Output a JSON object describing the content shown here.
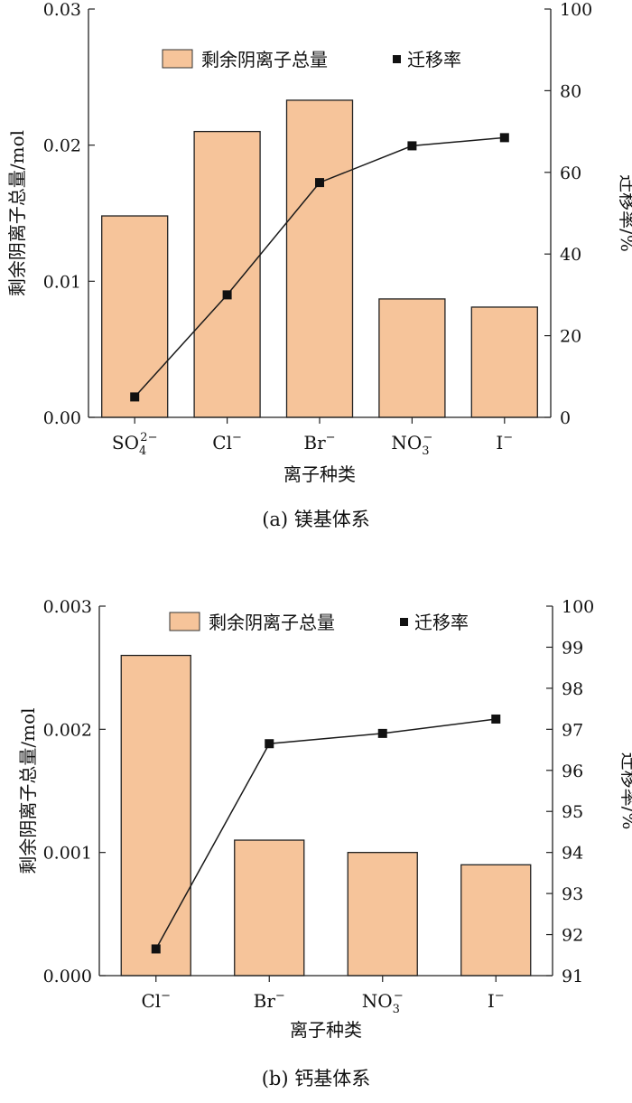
{
  "chart_data": [
    {
      "type": "bar+line",
      "caption": "(a) 镁基体系",
      "xlabel": "离子种类",
      "categories": [
        {
          "base": "SO",
          "sub": "4",
          "sup": "2−"
        },
        {
          "base": "Cl",
          "sub": "",
          "sup": "−"
        },
        {
          "base": "Br",
          "sub": "",
          "sup": "−"
        },
        {
          "base": "NO",
          "sub": "3",
          "sup": "−"
        },
        {
          "base": "I",
          "sub": "",
          "sup": "−"
        }
      ],
      "y_left": {
        "label": "剩余阴离子总量/mol",
        "lim": [
          0,
          0.03
        ],
        "ticks": [
          0,
          0.01,
          0.02,
          0.03
        ],
        "tick_labels": [
          "0.00",
          "0.01",
          "0.02",
          "0.03"
        ]
      },
      "y_right": {
        "label": "迁移率/%",
        "lim": [
          0,
          100
        ],
        "ticks": [
          0,
          20,
          40,
          60,
          80,
          100
        ],
        "tick_labels": [
          "0",
          "20",
          "40",
          "60",
          "80",
          "100"
        ]
      },
      "series": [
        {
          "name": "剩余阴离子总量",
          "kind": "bar",
          "axis": "left",
          "color": "#F6C49A",
          "values": [
            0.0148,
            0.021,
            0.0233,
            0.0087,
            0.0081
          ]
        },
        {
          "name": "迁移率",
          "kind": "line",
          "axis": "right",
          "color": "#111111",
          "values": [
            5,
            30,
            57.5,
            66.5,
            68.5
          ]
        }
      ],
      "legend": "top-center",
      "grid": false
    },
    {
      "type": "bar+line",
      "caption": "(b) 钙基体系",
      "xlabel": "离子种类",
      "categories": [
        {
          "base": "Cl",
          "sub": "",
          "sup": "−"
        },
        {
          "base": "Br",
          "sub": "",
          "sup": "−"
        },
        {
          "base": "NO",
          "sub": "3",
          "sup": "−"
        },
        {
          "base": "I",
          "sub": "",
          "sup": "−"
        }
      ],
      "y_left": {
        "label": "剩余阴离子总量/mol",
        "lim": [
          0,
          0.003
        ],
        "ticks": [
          0,
          0.001,
          0.002,
          0.003
        ],
        "tick_labels": [
          "0.000",
          "0.001",
          "0.002",
          "0.003"
        ]
      },
      "y_right": {
        "label": "迁移率/%",
        "lim": [
          91,
          100
        ],
        "ticks": [
          91,
          92,
          93,
          94,
          95,
          96,
          97,
          98,
          99,
          100
        ],
        "tick_labels": [
          "91",
          "92",
          "93",
          "94",
          "95",
          "96",
          "97",
          "98",
          "99",
          "100"
        ]
      },
      "series": [
        {
          "name": "剩余阴离子总量",
          "kind": "bar",
          "axis": "left",
          "color": "#F6C49A",
          "values": [
            0.0026,
            0.0011,
            0.001,
            0.0009
          ]
        },
        {
          "name": "迁移率",
          "kind": "line",
          "axis": "right",
          "color": "#111111",
          "values": [
            91.65,
            96.65,
            96.9,
            97.25
          ]
        }
      ],
      "legend": "top-center",
      "grid": false
    }
  ]
}
